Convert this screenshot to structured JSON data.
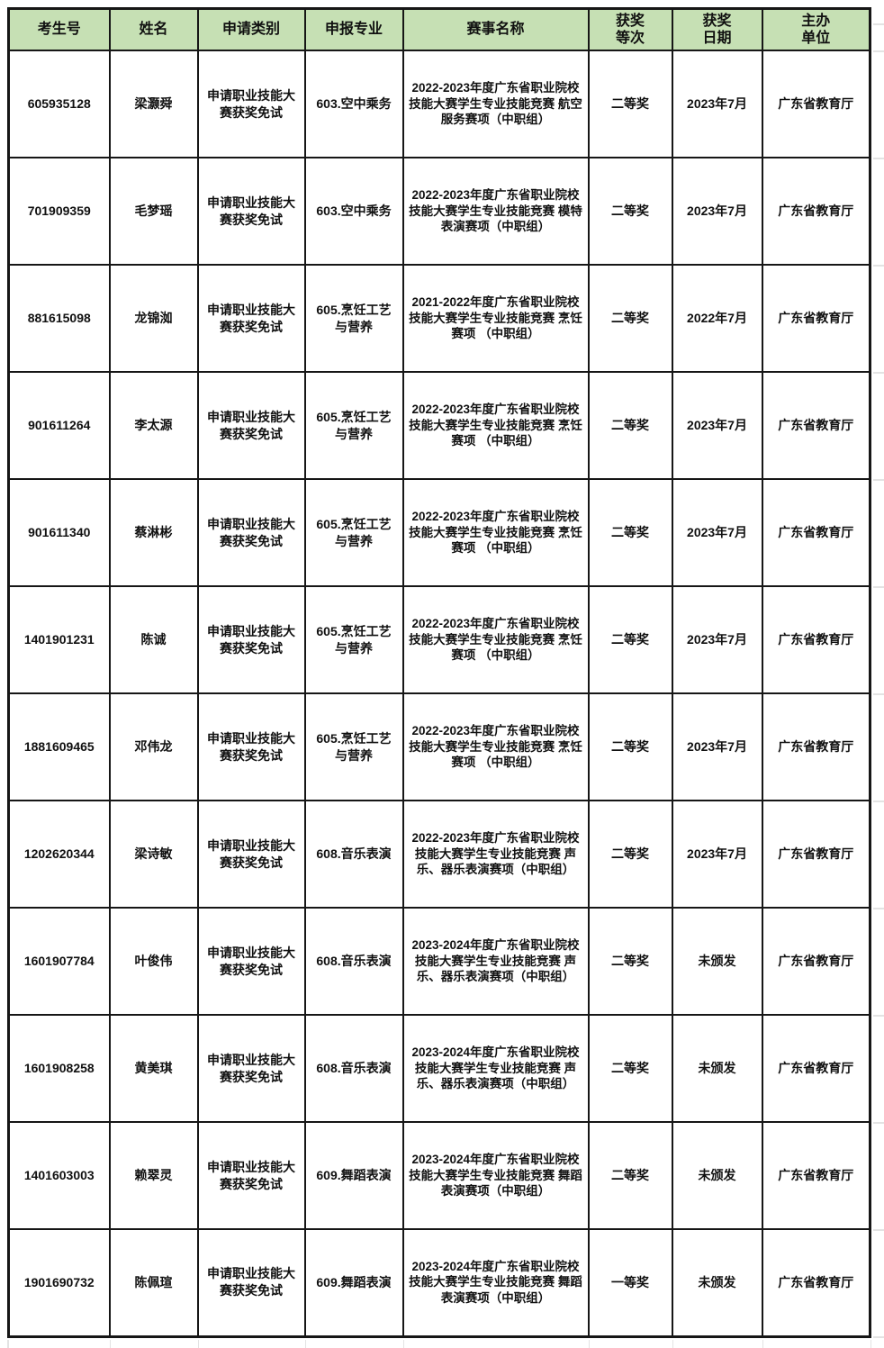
{
  "colors": {
    "header_bg": "#c6e0b4",
    "border": "#161616",
    "gridline": "#e3e3e3"
  },
  "table": {
    "columns": [
      {
        "key": "candidate_id",
        "label": "考生号"
      },
      {
        "key": "name",
        "label": "姓名"
      },
      {
        "key": "apply_category",
        "label": "申请类别"
      },
      {
        "key": "major",
        "label": "申报专业"
      },
      {
        "key": "competition",
        "label": "赛事名称"
      },
      {
        "key": "award_level",
        "label": "获奖\n等次"
      },
      {
        "key": "award_date",
        "label": "获奖\n日期"
      },
      {
        "key": "organizer",
        "label": "主办\n单位"
      }
    ],
    "rows": [
      {
        "candidate_id": "605935128",
        "name": "梁灏舜",
        "apply_category": "申请职业技能大赛获奖免试",
        "major": "603.空中乘务",
        "competition": "2022-2023年度广东省职业院校技能大赛学生专业技能竞赛 航空服务赛项（中职组）",
        "award_level": "二等奖",
        "award_date": "2023年7月",
        "organizer": "广东省教育厅"
      },
      {
        "candidate_id": "701909359",
        "name": "毛梦瑶",
        "apply_category": "申请职业技能大赛获奖免试",
        "major": "603.空中乘务",
        "competition": "2022-2023年度广东省职业院校技能大赛学生专业技能竞赛 模特表演赛项（中职组）",
        "award_level": "二等奖",
        "award_date": "2023年7月",
        "organizer": "广东省教育厅"
      },
      {
        "candidate_id": "881615098",
        "name": "龙锦洳",
        "apply_category": "申请职业技能大赛获奖免试",
        "major": "605.烹饪工艺与营养",
        "competition": "2021-2022年度广东省职业院校技能大赛学生专业技能竞赛 烹饪赛项 （中职组）",
        "award_level": "二等奖",
        "award_date": "2022年7月",
        "organizer": "广东省教育厅"
      },
      {
        "candidate_id": "901611264",
        "name": "李太源",
        "apply_category": "申请职业技能大赛获奖免试",
        "major": "605.烹饪工艺与营养",
        "competition": "2022-2023年度广东省职业院校技能大赛学生专业技能竞赛 烹饪赛项 （中职组）",
        "award_level": "二等奖",
        "award_date": "2023年7月",
        "organizer": "广东省教育厅"
      },
      {
        "candidate_id": "901611340",
        "name": "蔡淋彬",
        "apply_category": "申请职业技能大赛获奖免试",
        "major": "605.烹饪工艺与营养",
        "competition": "2022-2023年度广东省职业院校技能大赛学生专业技能竞赛 烹饪赛项 （中职组）",
        "award_level": "二等奖",
        "award_date": "2023年7月",
        "organizer": "广东省教育厅"
      },
      {
        "candidate_id": "1401901231",
        "name": "陈诚",
        "apply_category": "申请职业技能大赛获奖免试",
        "major": "605.烹饪工艺与营养",
        "competition": "2022-2023年度广东省职业院校技能大赛学生专业技能竞赛 烹饪赛项 （中职组）",
        "award_level": "二等奖",
        "award_date": "2023年7月",
        "organizer": "广东省教育厅"
      },
      {
        "candidate_id": "1881609465",
        "name": "邓伟龙",
        "apply_category": "申请职业技能大赛获奖免试",
        "major": "605.烹饪工艺与营养",
        "competition": "2022-2023年度广东省职业院校技能大赛学生专业技能竞赛 烹饪赛项 （中职组）",
        "award_level": "二等奖",
        "award_date": "2023年7月",
        "organizer": "广东省教育厅"
      },
      {
        "candidate_id": "1202620344",
        "name": "梁诗敏",
        "apply_category": "申请职业技能大赛获奖免试",
        "major": "608.音乐表演",
        "competition": "2022-2023年度广东省职业院校技能大赛学生专业技能竞赛 声乐、器乐表演赛项（中职组）",
        "award_level": "二等奖",
        "award_date": "2023年7月",
        "organizer": "广东省教育厅"
      },
      {
        "candidate_id": "1601907784",
        "name": "叶俊伟",
        "apply_category": "申请职业技能大赛获奖免试",
        "major": "608.音乐表演",
        "competition": "2023-2024年度广东省职业院校技能大赛学生专业技能竞赛 声乐、器乐表演赛项（中职组）",
        "award_level": "二等奖",
        "award_date": "未颁发",
        "organizer": "广东省教育厅"
      },
      {
        "candidate_id": "1601908258",
        "name": "黄美琪",
        "apply_category": "申请职业技能大赛获奖免试",
        "major": "608.音乐表演",
        "competition": "2023-2024年度广东省职业院校技能大赛学生专业技能竞赛 声乐、器乐表演赛项（中职组）",
        "award_level": "二等奖",
        "award_date": "未颁发",
        "organizer": "广东省教育厅"
      },
      {
        "candidate_id": "1401603003",
        "name": "赖翠灵",
        "apply_category": "申请职业技能大赛获奖免试",
        "major": "609.舞蹈表演",
        "competition": "2023-2024年度广东省职业院校技能大赛学生专业技能竞赛 舞蹈表演赛项（中职组）",
        "award_level": "二等奖",
        "award_date": "未颁发",
        "organizer": "广东省教育厅"
      },
      {
        "candidate_id": "1901690732",
        "name": "陈佩瑄",
        "apply_category": "申请职业技能大赛获奖免试",
        "major": "609.舞蹈表演",
        "competition": "2023-2024年度广东省职业院校技能大赛学生专业技能竞赛 舞蹈表演赛项（中职组）",
        "award_level": "一等奖",
        "award_date": "未颁发",
        "organizer": "广东省教育厅"
      }
    ]
  }
}
